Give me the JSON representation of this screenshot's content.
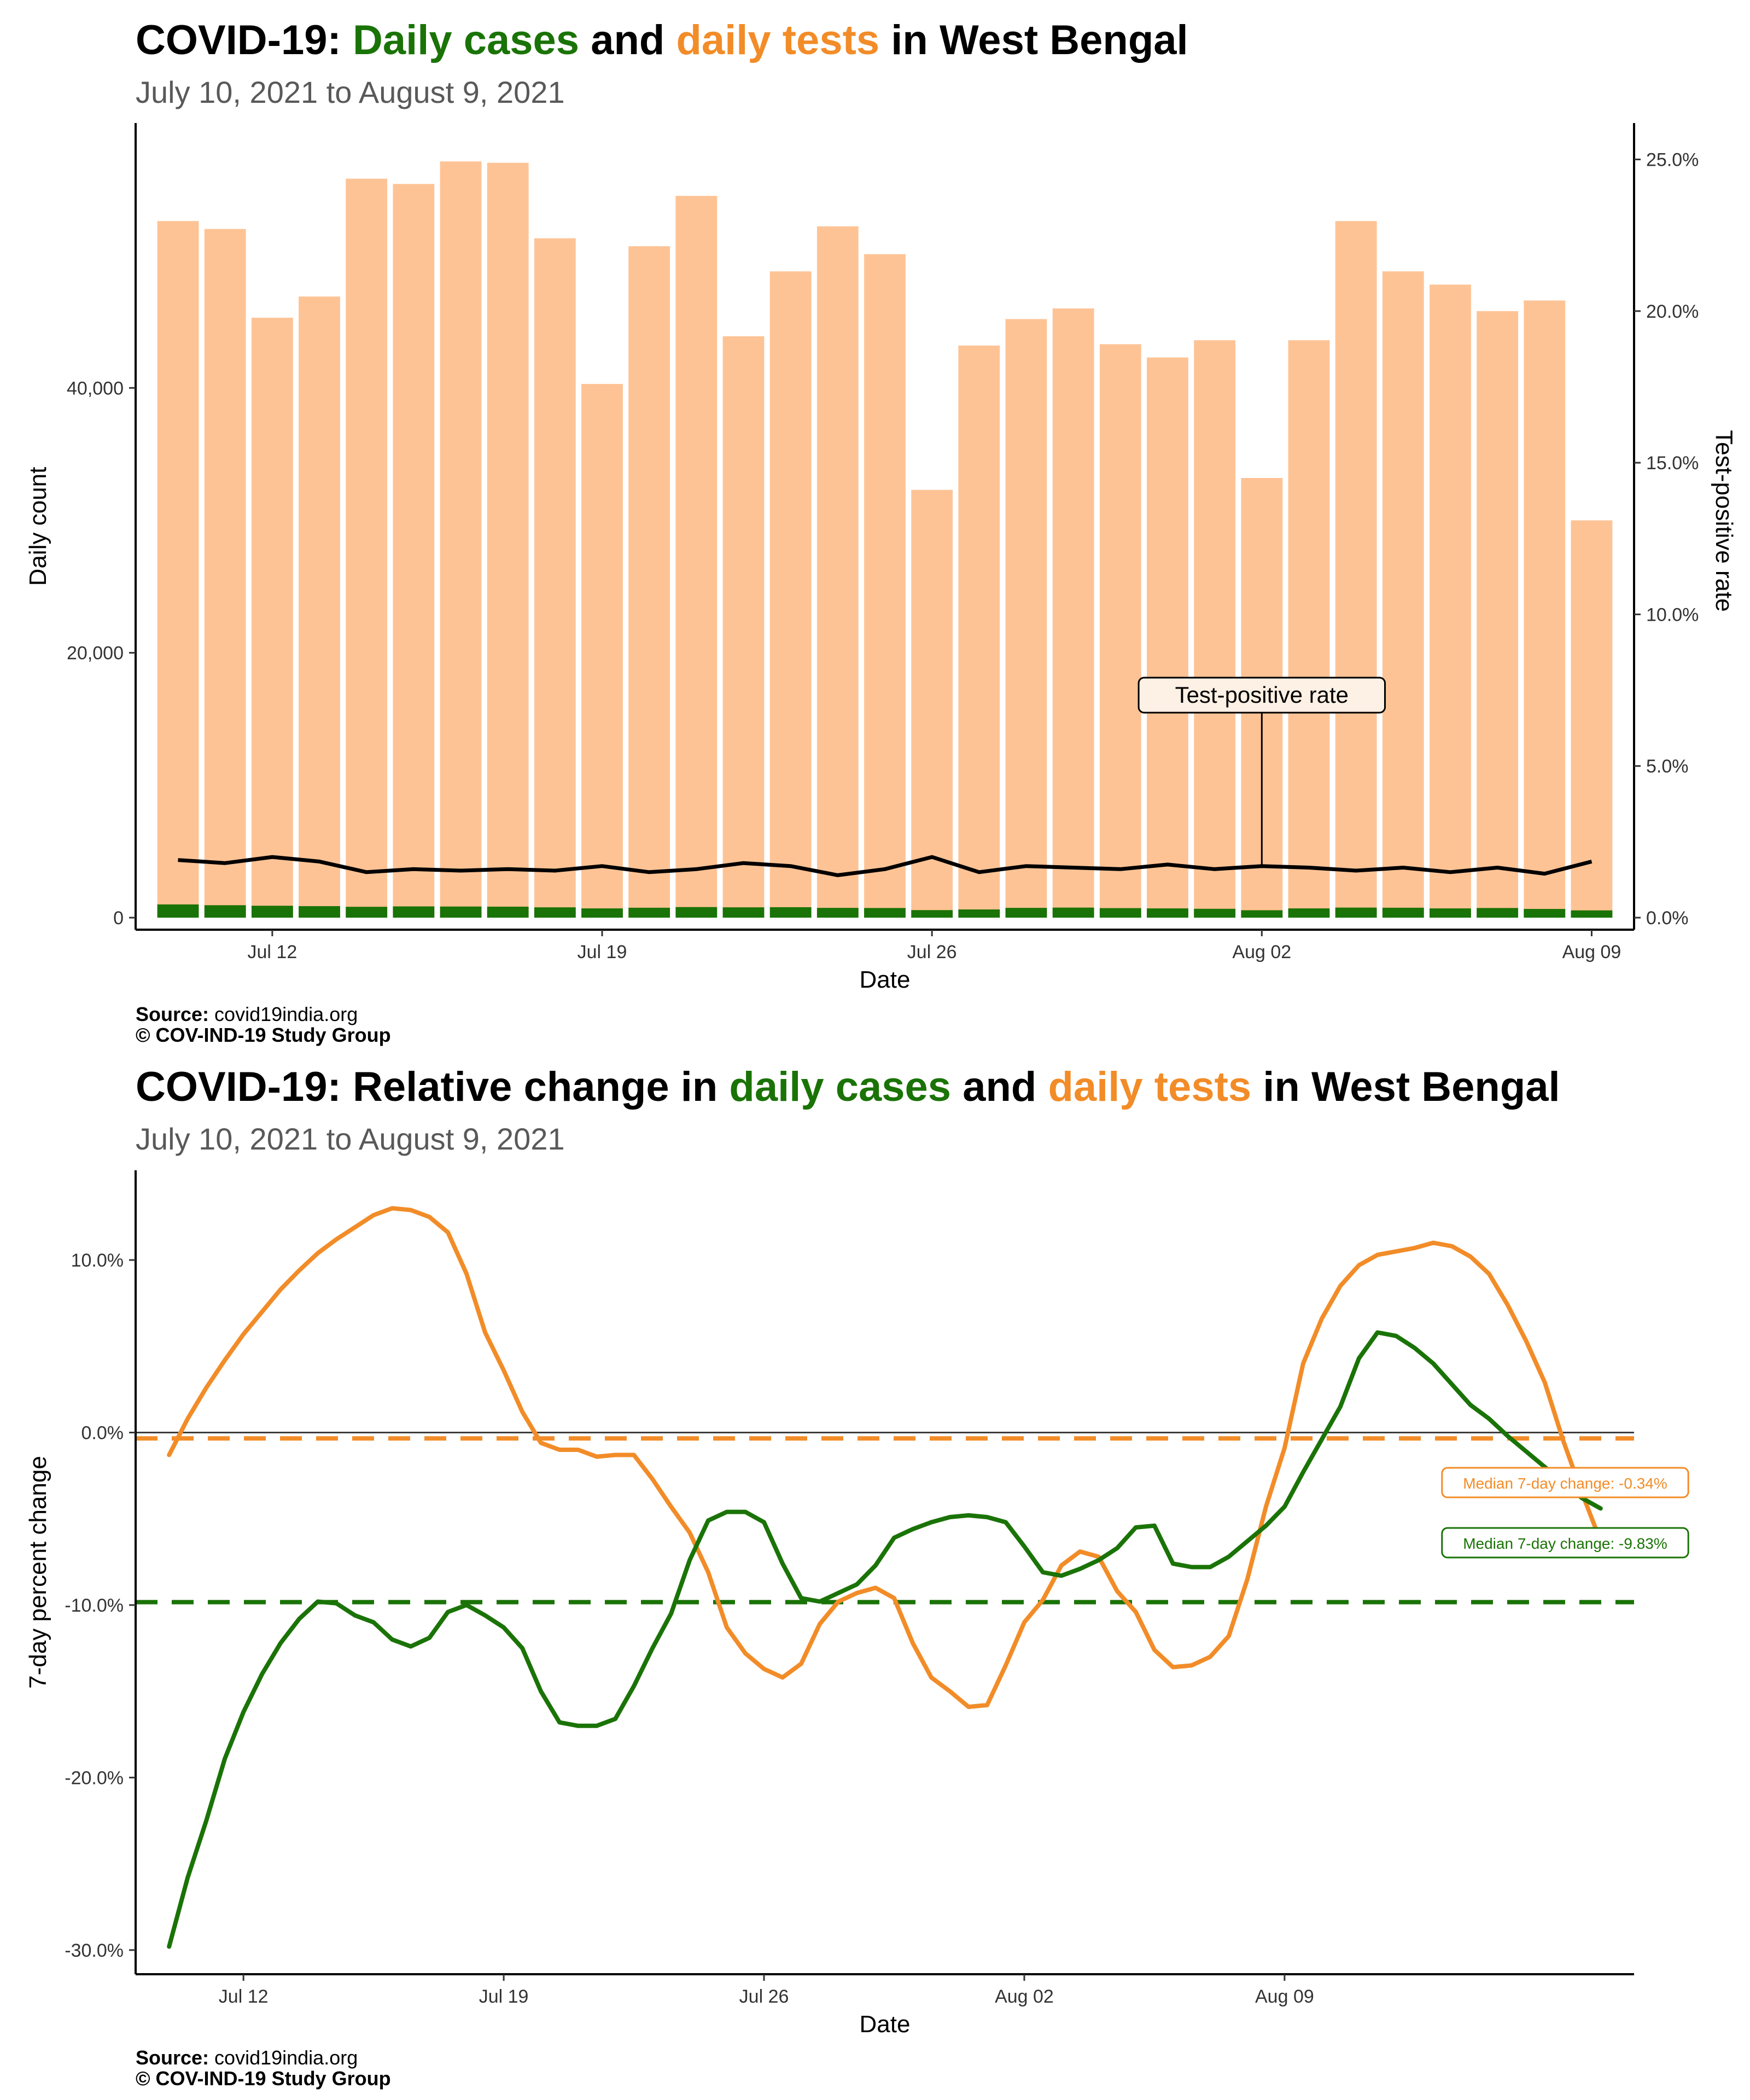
{
  "panel1": {
    "title_prefix": "COVID-19: ",
    "title_cases": "Daily cases",
    "title_mid": " and ",
    "title_tests": "daily tests",
    "title_suffix": " in West Bengal",
    "subtitle": "July 10, 2021 to August  9, 2021",
    "source_label": "Source:",
    "source_value": " covid19india.org",
    "copyright": "© COV-IND-19 Study Group"
  },
  "panel2": {
    "title_prefix": "COVID-19: Relative change in ",
    "title_cases": "daily cases",
    "title_mid": " and ",
    "title_tests": "daily tests",
    "title_suffix": " in West Bengal",
    "subtitle": "July 10, 2021 to August  9, 2021",
    "source_label": "Source:",
    "source_value": " covid19india.org",
    "copyright": "© COV-IND-19 Study Group"
  },
  "colors": {
    "cases": "#1a7306",
    "tests": "#f28c28",
    "tests_bar": "#fec395",
    "tpr": "#000000"
  },
  "chart_data": [
    {
      "type": "bar",
      "xlabel": "Date",
      "ylabel": "Daily count",
      "y2label": "Test-positive rate",
      "x_ticks": [
        "Jul 12",
        "Jul 19",
        "Jul 26",
        "Aug 02",
        "Aug 09"
      ],
      "x_tick_dates": [
        "2021-07-12",
        "2021-07-19",
        "2021-07-26",
        "2021-08-02",
        "2021-08-09"
      ],
      "y_ticks": [
        "0",
        "20,000",
        "40,000"
      ],
      "y_tick_values": [
        0,
        20000,
        40000
      ],
      "ylim": [
        0,
        60000
      ],
      "y2_ticks": [
        "0.0%",
        "5.0%",
        "10.0%",
        "15.0%",
        "20.0%",
        "25.0%"
      ],
      "y2_tick_values": [
        0,
        5,
        10,
        15,
        20,
        25
      ],
      "y2lim": [
        0,
        26.2
      ],
      "annotation": "Test-positive rate",
      "annotation_date": "2021-08-02",
      "annotation_value": 7.3,
      "dates": [
        "2021-07-10",
        "2021-07-11",
        "2021-07-12",
        "2021-07-13",
        "2021-07-14",
        "2021-07-15",
        "2021-07-16",
        "2021-07-17",
        "2021-07-18",
        "2021-07-19",
        "2021-07-20",
        "2021-07-21",
        "2021-07-22",
        "2021-07-23",
        "2021-07-24",
        "2021-07-25",
        "2021-07-26",
        "2021-07-27",
        "2021-07-28",
        "2021-07-29",
        "2021-07-30",
        "2021-07-31",
        "2021-08-01",
        "2021-08-02",
        "2021-08-03",
        "2021-08-04",
        "2021-08-05",
        "2021-08-06",
        "2021-08-07",
        "2021-08-08",
        "2021-08-09"
      ],
      "series": [
        {
          "name": "daily tests",
          "values": [
            52600,
            52000,
            45300,
            46900,
            55800,
            55400,
            57100,
            57000,
            51300,
            40300,
            50700,
            54500,
            43900,
            48800,
            52200,
            50100,
            32300,
            43200,
            45200,
            46000,
            43300,
            42300,
            43600,
            33200,
            43600,
            52600,
            48800,
            47800,
            45800,
            46600,
            30000
          ]
        },
        {
          "name": "daily cases",
          "values": [
            1000,
            940,
            900,
            870,
            820,
            850,
            840,
            830,
            780,
            700,
            750,
            800,
            780,
            790,
            740,
            730,
            570,
            620,
            740,
            760,
            720,
            700,
            670,
            560,
            700,
            760,
            750,
            700,
            730,
            660,
            550
          ]
        },
        {
          "name": "Test-positive rate",
          "values": [
            1.9,
            1.8,
            2.0,
            1.85,
            1.5,
            1.6,
            1.55,
            1.6,
            1.55,
            1.7,
            1.5,
            1.6,
            1.8,
            1.7,
            1.4,
            1.6,
            2.0,
            1.5,
            1.7,
            1.65,
            1.6,
            1.75,
            1.6,
            1.7,
            1.65,
            1.55,
            1.65,
            1.5,
            1.65,
            1.45,
            1.85
          ]
        }
      ]
    },
    {
      "type": "line",
      "xlabel": "Date",
      "ylabel": "7-day percent change",
      "x_ticks": [
        "Jul 12",
        "Jul 19",
        "Jul 26",
        "Aug 02",
        "Aug 09"
      ],
      "x_tick_dates": [
        "2021-07-12",
        "2021-07-19",
        "2021-07-26",
        "2021-08-02",
        "2021-08-09"
      ],
      "y_ticks": [
        "-30.0%",
        "-20.0%",
        "-10.0%",
        "0.0%",
        "10.0%"
      ],
      "y_tick_values": [
        -30,
        -20,
        -10,
        0,
        10
      ],
      "ylim": [
        -31.4,
        15.2
      ],
      "x_start": "2021-07-10",
      "x_step_days": 0.5,
      "median_tests_label": "Median 7-day change: -0.34%",
      "median_tests": -0.34,
      "median_cases_label": "Median 7-day change: -9.83%",
      "median_cases": -9.83,
      "series": [
        {
          "name": "daily tests",
          "values": [
            -1.3,
            0.8,
            2.6,
            4.2,
            5.7,
            7.0,
            8.3,
            9.4,
            10.4,
            11.2,
            11.9,
            12.6,
            13.0,
            12.9,
            12.5,
            11.6,
            9.2,
            5.8,
            3.6,
            1.2,
            -0.6,
            -1.0,
            -1.0,
            -1.4,
            -1.3,
            -1.3,
            -2.7,
            -4.3,
            -5.8,
            -8.1,
            -11.3,
            -12.8,
            -13.7,
            -14.2,
            -13.4,
            -11.1,
            -9.8,
            -9.3,
            -9.0,
            -9.6,
            -12.2,
            -14.2,
            -15.0,
            -15.9,
            -15.8,
            -13.5,
            -11.0,
            -9.7,
            -7.7,
            -6.9,
            -7.2,
            -9.2,
            -10.4,
            -12.6,
            -13.6,
            -13.5,
            -13.0,
            -11.8,
            -8.5,
            -4.3,
            -0.9,
            4.0,
            6.6,
            8.5,
            9.7,
            10.3,
            10.5,
            10.7,
            11.0,
            10.8,
            10.2,
            9.2,
            7.4,
            5.3,
            2.9,
            -0.5,
            -3.5,
            -6.3
          ]
        },
        {
          "name": "daily cases",
          "values": [
            -29.8,
            -25.8,
            -22.5,
            -18.9,
            -16.2,
            -14.0,
            -12.2,
            -10.8,
            -9.8,
            -9.9,
            -10.6,
            -11.0,
            -12.0,
            -12.4,
            -11.9,
            -10.4,
            -10.0,
            -10.6,
            -11.3,
            -12.5,
            -15.0,
            -16.8,
            -17.0,
            -17.0,
            -16.6,
            -14.7,
            -12.5,
            -10.5,
            -7.4,
            -5.1,
            -4.6,
            -4.6,
            -5.2,
            -7.6,
            -9.6,
            -9.8,
            -9.3,
            -8.8,
            -7.7,
            -6.1,
            -5.6,
            -5.2,
            -4.9,
            -4.8,
            -4.9,
            -5.2,
            -6.6,
            -8.1,
            -8.3,
            -7.9,
            -7.4,
            -6.7,
            -5.5,
            -5.4,
            -7.6,
            -7.8,
            -7.8,
            -7.2,
            -6.3,
            -5.4,
            -4.3,
            -2.3,
            -0.4,
            1.5,
            4.3,
            5.8,
            5.6,
            4.9,
            4.0,
            2.8,
            1.6,
            0.8,
            -0.2,
            -1.1,
            -2.0,
            -2.9,
            -3.8,
            -4.4
          ]
        }
      ]
    }
  ]
}
